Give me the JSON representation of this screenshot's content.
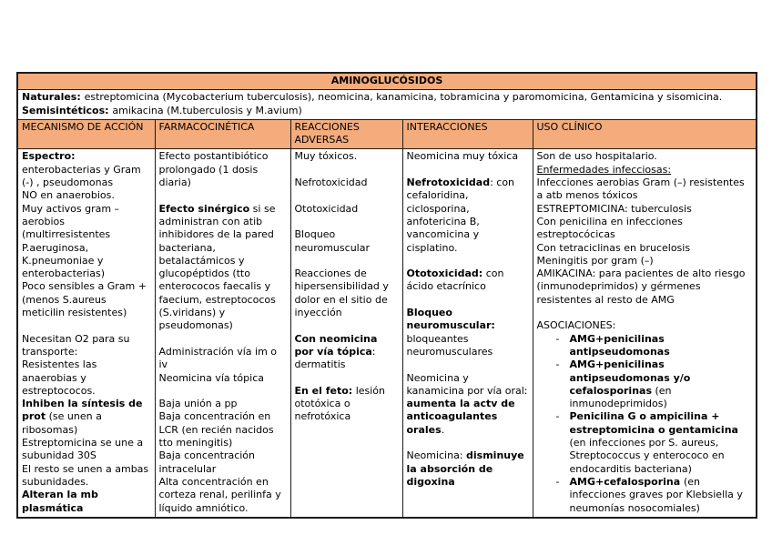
{
  "colors": {
    "accent": "#F4AC7C",
    "border": "#1c1c1c"
  },
  "table": {
    "title": "AMINOGLUCÓSIDOS",
    "bullet_marker": "-",
    "intro": [
      {
        "runs": [
          {
            "t": "Naturales: ",
            "b": true
          },
          {
            "t": "estreptomicina (Mycobacterium tuberculosis), neomicina, kanamicina, tobramicina y paromomicina, Gentamicina y sisomicina."
          }
        ]
      },
      {
        "runs": [
          {
            "t": "Semisintéticos: ",
            "b": true
          },
          {
            "t": "amikacina (M.tuberculosis y M.avium)"
          }
        ]
      }
    ],
    "headers": [
      "MECANISMO DE ACCIÓN",
      "FARMACOCINÉTICA",
      "REACCIONES ADVERSAS",
      "INTERACCIONES",
      "USO CLÍNICO"
    ],
    "columns": [
      {
        "name": "mecanismo-de-accion",
        "paragraphs": [
          {
            "runs": [
              {
                "t": "Espectro:",
                "b": true
              }
            ]
          },
          {
            "runs": [
              {
                "t": "enterobacterias y Gram (-) , pseudomonas"
              }
            ]
          },
          {
            "runs": [
              {
                "t": "NO en anaerobios."
              }
            ]
          },
          {
            "runs": [
              {
                "t": "Muy activos gram – aerobios (multirresistentes P.aeruginosa, K.pneumoniae y enterobacterias)"
              }
            ]
          },
          {
            "runs": [
              {
                "t": "Poco sensibles a Gram + (menos S.aureus meticilin resistentes)"
              }
            ]
          },
          {
            "runs": []
          },
          {
            "runs": [
              {
                "t": "Necesitan O2 para su transporte:"
              }
            ]
          },
          {
            "runs": [
              {
                "t": "Resistentes las anaerobias y estreptococos."
              }
            ]
          },
          {
            "runs": [
              {
                "t": "Inhiben la síntesis de prot",
                "b": true
              },
              {
                "t": " (se unen a ribosomas)"
              }
            ]
          },
          {
            "runs": [
              {
                "t": "Estreptomicina se une a subunidad 30S"
              }
            ]
          },
          {
            "runs": [
              {
                "t": "El resto se unen a ambas subunidades."
              }
            ]
          },
          {
            "runs": [
              {
                "t": "Alteran la mb plasmática",
                "b": true
              }
            ]
          }
        ]
      },
      {
        "name": "farmacocinetica",
        "paragraphs": [
          {
            "runs": [
              {
                "t": "Efecto postantibiótico prolongado (1 dosis diaria)"
              }
            ]
          },
          {
            "runs": []
          },
          {
            "runs": [
              {
                "t": "Efecto sinérgico",
                "b": true
              },
              {
                "t": " si se administran con atib inhibidores de la pared bacteriana, betalactámicos y glucopéptidos (tto enterococos faecalis y faecium, estreptococos (S.viridans) y pseudomonas)"
              }
            ]
          },
          {
            "runs": []
          },
          {
            "runs": [
              {
                "t": "Administración vía im o iv"
              }
            ]
          },
          {
            "runs": [
              {
                "t": "Neomicina vía tópica"
              }
            ]
          },
          {
            "runs": []
          },
          {
            "runs": [
              {
                "t": "Baja unión a pp"
              }
            ]
          },
          {
            "runs": [
              {
                "t": "Baja concentración en LCR (en recién nacidos tto meningitis)"
              }
            ]
          },
          {
            "runs": [
              {
                "t": "Baja concentración intracelular"
              }
            ]
          },
          {
            "runs": [
              {
                "t": "Alta concentración en corteza renal, perilinfa y líquido amniótico."
              }
            ]
          }
        ]
      },
      {
        "name": "reacciones-adversas",
        "paragraphs": [
          {
            "runs": [
              {
                "t": "Muy tóxicos."
              }
            ]
          },
          {
            "runs": []
          },
          {
            "runs": [
              {
                "t": "Nefrotoxicidad"
              }
            ]
          },
          {
            "runs": []
          },
          {
            "runs": [
              {
                "t": "Ototoxicidad"
              }
            ]
          },
          {
            "runs": []
          },
          {
            "runs": [
              {
                "t": "Bloqueo neuromuscular"
              }
            ]
          },
          {
            "runs": []
          },
          {
            "runs": [
              {
                "t": "Reacciones de hipersensibilidad y dolor en el sitio de inyección"
              }
            ]
          },
          {
            "runs": []
          },
          {
            "runs": [
              {
                "t": "Con neomicina por vía tópica",
                "b": true
              },
              {
                "t": ": dermatitis"
              }
            ]
          },
          {
            "runs": []
          },
          {
            "runs": [
              {
                "t": "En el feto:",
                "b": true
              },
              {
                "t": " lesión ototóxica o nefrotóxica"
              }
            ]
          }
        ]
      },
      {
        "name": "interacciones",
        "paragraphs": [
          {
            "runs": [
              {
                "t": "Neomicina muy tóxica"
              }
            ]
          },
          {
            "runs": []
          },
          {
            "runs": [
              {
                "t": "Nefrotoxicidad",
                "b": true
              },
              {
                "t": ": con cefaloridina, ciclosporina, anfotericina B, vancomicina y cisplatino."
              }
            ]
          },
          {
            "runs": []
          },
          {
            "runs": [
              {
                "t": "Ototoxicidad:",
                "b": true
              },
              {
                "t": " con ácido etacrínico"
              }
            ]
          },
          {
            "runs": []
          },
          {
            "runs": [
              {
                "t": "Bloqueo neuromuscular:",
                "b": true
              },
              {
                "t": " bloqueantes neuromusculares"
              }
            ]
          },
          {
            "runs": []
          },
          {
            "runs": [
              {
                "t": "Neomicina y kanamicina por vía oral: "
              },
              {
                "t": "aumenta la actv de anticoagulantes orales",
                "b": true
              },
              {
                "t": "."
              }
            ]
          },
          {
            "runs": []
          },
          {
            "runs": [
              {
                "t": "Neomicina: "
              },
              {
                "t": "disminuye la absorción de digoxina",
                "b": true
              }
            ]
          }
        ]
      },
      {
        "name": "uso-clinico",
        "paragraphs": [
          {
            "runs": [
              {
                "t": "Son de uso hospitalario."
              }
            ]
          },
          {
            "runs": [
              {
                "t": "Enfermedades infecciosas:",
                "u": true
              }
            ]
          },
          {
            "runs": [
              {
                "t": "Infecciones aerobias Gram (–) resistentes a atb menos tóxicos"
              }
            ]
          },
          {
            "runs": [
              {
                "t": "ESTREPTOMICINA: tuberculosis"
              }
            ]
          },
          {
            "runs": [
              {
                "t": "Con penicilina en infecciones estreptocócicas"
              }
            ]
          },
          {
            "runs": [
              {
                "t": "Con tetraciclinas en brucelosis"
              }
            ]
          },
          {
            "runs": [
              {
                "t": "Meningitis por gram (–)"
              }
            ]
          },
          {
            "runs": [
              {
                "t": "AMIKACINA: para pacientes de alto riesgo (inmunodeprimidos) y gérmenes resistentes al resto de AMG"
              }
            ]
          },
          {
            "runs": []
          },
          {
            "runs": [
              {
                "t": "ASOCIACIONES:"
              }
            ]
          },
          {
            "bullet": true,
            "runs": [
              {
                "t": "AMG+penicilinas antipseudomonas",
                "b": true
              }
            ]
          },
          {
            "bullet": true,
            "runs": [
              {
                "t": "AMG+penicilinas antipseudomonas y/o cefalosporinas",
                "b": true
              },
              {
                "t": " (en inmunodeprimidos)"
              }
            ]
          },
          {
            "bullet": true,
            "runs": [
              {
                "t": "Penicilina G o ampicilina + estreptomicina o gentamicina",
                "b": true
              },
              {
                "t": " (en infecciones por S. aureus, Streptococcus y enterococo en endocarditis bacteriana)"
              }
            ]
          },
          {
            "bullet": true,
            "runs": [
              {
                "t": "AMG+cefalosporina ",
                "b": true
              },
              {
                "t": " (en infecciones graves por Klebsiella y neumonías nosocomiales)"
              }
            ]
          }
        ]
      }
    ]
  }
}
